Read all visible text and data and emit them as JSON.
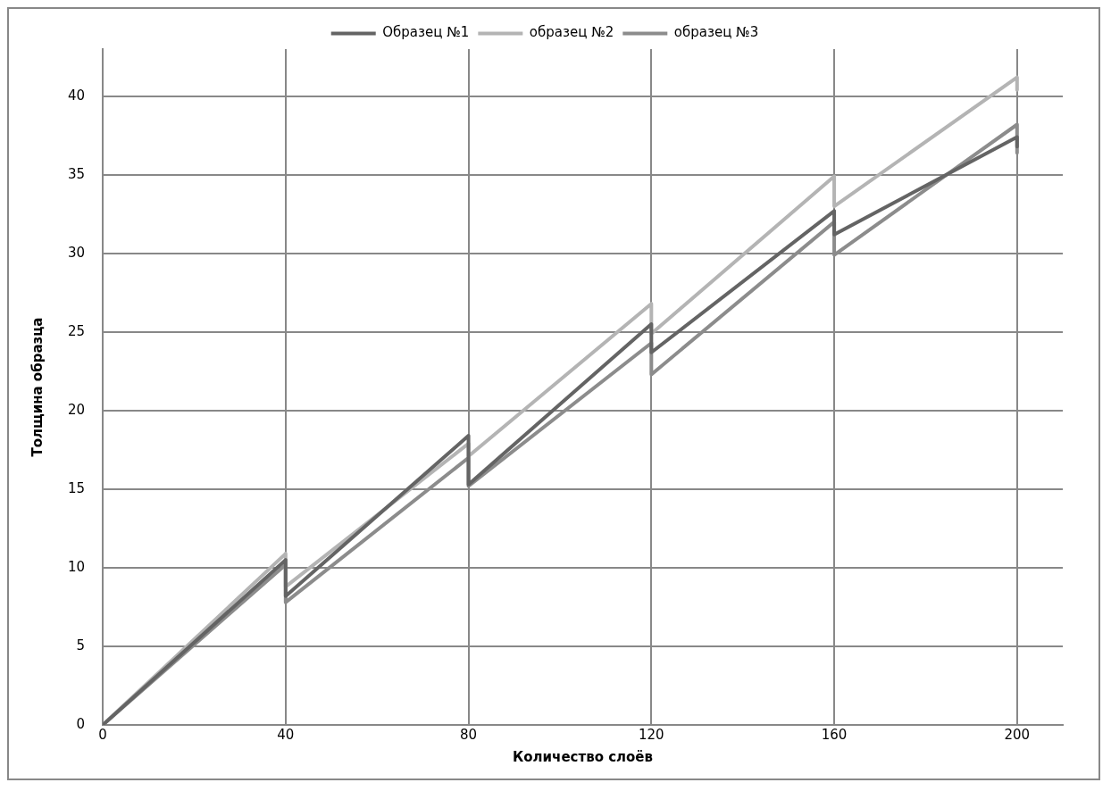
{
  "chart_data": {
    "type": "line",
    "xlabel": "Количество слоёв",
    "ylabel": "Толщина образца",
    "xlim": [
      0,
      210
    ],
    "xticks": [
      0,
      40,
      80,
      120,
      160,
      200
    ],
    "ylim": [
      0,
      43
    ],
    "yticks": [
      0,
      5,
      10,
      15,
      20,
      25,
      30,
      35,
      40
    ],
    "grid": true,
    "legend": "top",
    "marker": "none",
    "line_style": "solid",
    "series": [
      {
        "name": "Образец №1",
        "color": "#646464",
        "x": [
          0,
          40,
          40,
          80,
          80,
          120,
          120,
          160,
          160,
          200,
          200
        ],
        "values": [
          0,
          10.5,
          8.2,
          18.4,
          15.3,
          25.5,
          23.7,
          32.7,
          31.2,
          37.4,
          36.8
        ]
      },
      {
        "name": "образец №2",
        "color": "#b4b4b4",
        "x": [
          0,
          40,
          40,
          80,
          80,
          120,
          120,
          160,
          160,
          200,
          200
        ],
        "values": [
          0,
          10.9,
          8.8,
          17.9,
          17.1,
          26.8,
          24.9,
          34.9,
          33.0,
          41.2,
          40.4
        ]
      },
      {
        "name": "образец №3",
        "color": "#8c8c8c",
        "x": [
          0,
          40,
          40,
          80,
          80,
          120,
          120,
          160,
          160,
          200,
          200
        ],
        "values": [
          0,
          10.2,
          7.8,
          17.0,
          15.2,
          24.3,
          22.3,
          32.0,
          29.9,
          38.2,
          36.4
        ]
      }
    ]
  }
}
